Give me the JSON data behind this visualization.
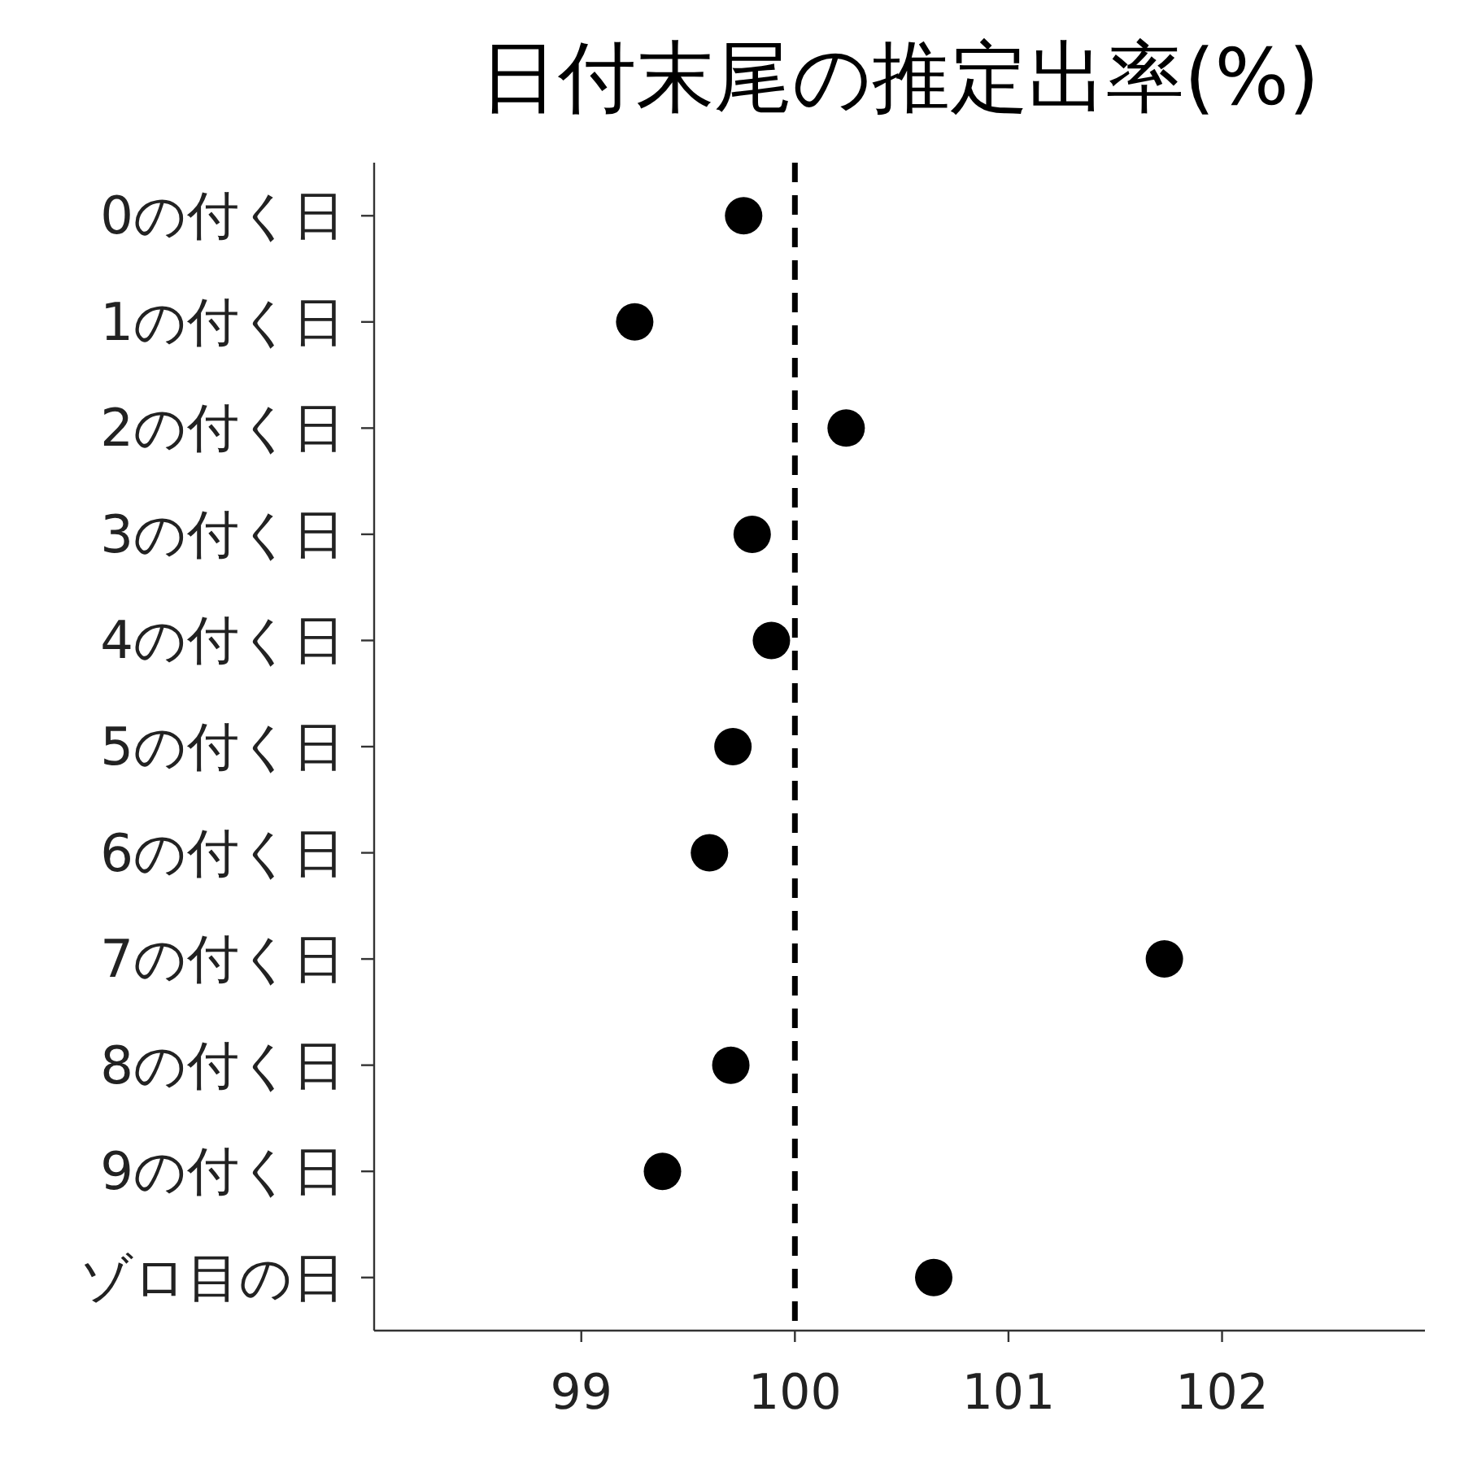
{
  "chart_data": {
    "type": "scatter",
    "title": "日付末尾の推定出率(%)",
    "orientation": "horizontal",
    "categories": [
      "0の付く日",
      "1の付く日",
      "2の付く日",
      "3の付く日",
      "4の付く日",
      "5の付く日",
      "6の付く日",
      "7の付く日",
      "8の付く日",
      "9の付く日",
      "ゾロ目の日"
    ],
    "values": [
      99.76,
      99.25,
      100.24,
      99.8,
      99.89,
      99.71,
      99.6,
      101.73,
      99.7,
      99.38,
      100.65
    ],
    "color": "#000000",
    "marker": "circle",
    "grid": false,
    "xlim": [
      98.03,
      102.95
    ],
    "xticks": [
      99,
      100,
      101,
      102
    ],
    "ref_lines": [
      {
        "axis": "x",
        "value": 100,
        "line_style": "dashed",
        "color": "#000000"
      }
    ]
  }
}
